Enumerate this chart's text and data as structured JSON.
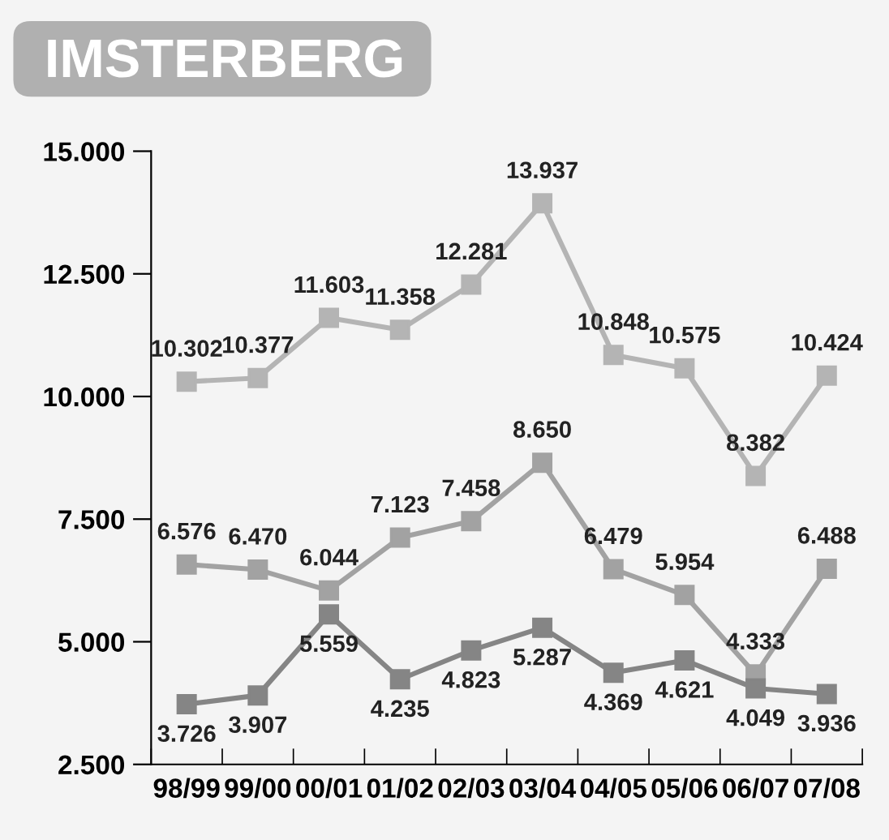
{
  "chart_data": {
    "type": "line",
    "title": "IMSTERBERG",
    "categories": [
      "98/99",
      "99/00",
      "00/01",
      "01/02",
      "02/03",
      "03/04",
      "04/05",
      "05/06",
      "06/07",
      "07/08"
    ],
    "series": [
      {
        "color": "#b4b4b4",
        "values": [
          10302,
          10377,
          11603,
          11358,
          12281,
          13937,
          10848,
          10575,
          8382,
          10424
        ],
        "value_labels": [
          "10.302",
          "10.377",
          "11.603",
          "11.358",
          "12.281",
          "13.937",
          "10.848",
          "10.575",
          "8.382",
          "10.424"
        ]
      },
      {
        "color": "#a2a2a2",
        "values": [
          6576,
          6470,
          6044,
          7123,
          7458,
          8650,
          6479,
          5954,
          4333,
          6488
        ],
        "value_labels": [
          "6.576",
          "6.470",
          "6.044",
          "7.123",
          "7.458",
          "8.650",
          "6.479",
          "5.954",
          "4.333",
          "6.488"
        ]
      },
      {
        "color": "#858585",
        "values": [
          3726,
          3907,
          5559,
          4235,
          4823,
          5287,
          4369,
          4621,
          4049,
          3936
        ],
        "value_labels": [
          "3.726",
          "3.907",
          "5.559",
          "4.235",
          "4.823",
          "5.287",
          "4.369",
          "4.621",
          "4.049",
          "3.936"
        ]
      }
    ],
    "ylim": [
      2500,
      15000
    ],
    "yticks": [
      {
        "value": 2500,
        "label": "2.500"
      },
      {
        "value": 5000,
        "label": "5.000"
      },
      {
        "value": 7500,
        "label": "7.500"
      },
      {
        "value": 10000,
        "label": "10.000"
      },
      {
        "value": 12500,
        "label": "12.500"
      },
      {
        "value": 15000,
        "label": "15.000"
      }
    ],
    "marker": "square",
    "line_style": "solid",
    "grid": false,
    "legend": false
  }
}
